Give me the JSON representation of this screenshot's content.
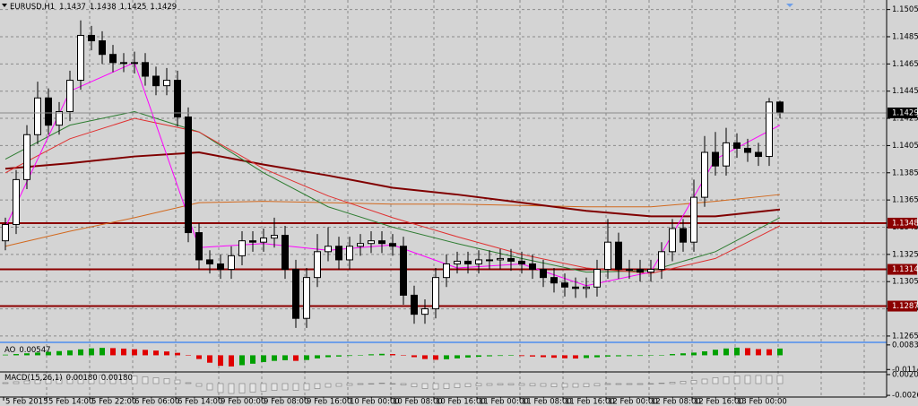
{
  "chart_data": {
    "type": "candlestick",
    "symbol": "EURUSD,H1",
    "ohlc": [
      [
        1.1335,
        1.1352,
        1.1328,
        1.1347
      ],
      [
        1.1347,
        1.1387,
        1.134,
        1.138
      ],
      [
        1.138,
        1.142,
        1.1373,
        1.1413
      ],
      [
        1.1413,
        1.1452,
        1.1406,
        1.144
      ],
      [
        1.144,
        1.1447,
        1.1413,
        1.142
      ],
      [
        1.142,
        1.1437,
        1.1413,
        1.143
      ],
      [
        1.143,
        1.146,
        1.1423,
        1.1453
      ],
      [
        1.1453,
        1.1497,
        1.1446,
        1.1486
      ],
      [
        1.1486,
        1.1493,
        1.1475,
        1.1482
      ],
      [
        1.1482,
        1.1489,
        1.1465,
        1.1472
      ],
      [
        1.1472,
        1.1479,
        1.1459,
        1.1466
      ],
      [
        1.1466,
        1.1473,
        1.1459,
        1.1466
      ],
      [
        1.1466,
        1.1474,
        1.1458,
        1.1466
      ],
      [
        1.1466,
        1.1473,
        1.1449,
        1.1456
      ],
      [
        1.1456,
        1.1463,
        1.1442,
        1.1449
      ],
      [
        1.1449,
        1.1462,
        1.1442,
        1.1453
      ],
      [
        1.1453,
        1.146,
        1.1419,
        1.1426
      ],
      [
        1.1426,
        1.1433,
        1.1334,
        1.1341
      ],
      [
        1.1341,
        1.1348,
        1.1314,
        1.1321
      ],
      [
        1.1321,
        1.1328,
        1.1311,
        1.1318
      ],
      [
        1.1318,
        1.1325,
        1.1307,
        1.1314
      ],
      [
        1.1314,
        1.1331,
        1.1307,
        1.1324
      ],
      [
        1.1324,
        1.1342,
        1.1317,
        1.1335
      ],
      [
        1.1335,
        1.1342,
        1.1327,
        1.1334
      ],
      [
        1.1334,
        1.1344,
        1.1327,
        1.1337
      ],
      [
        1.1337,
        1.1352,
        1.133,
        1.1339
      ],
      [
        1.1339,
        1.1346,
        1.1307,
        1.1314
      ],
      [
        1.1314,
        1.1321,
        1.1271,
        1.1278
      ],
      [
        1.1278,
        1.1315,
        1.1271,
        1.1308
      ],
      [
        1.1308,
        1.134,
        1.1301,
        1.1327
      ],
      [
        1.1327,
        1.1345,
        1.132,
        1.1331
      ],
      [
        1.1331,
        1.1338,
        1.1314,
        1.1321
      ],
      [
        1.1321,
        1.1338,
        1.1314,
        1.1331
      ],
      [
        1.1331,
        1.134,
        1.1324,
        1.1333
      ],
      [
        1.1333,
        1.1342,
        1.1326,
        1.1335
      ],
      [
        1.1335,
        1.1342,
        1.1326,
        1.1333
      ],
      [
        1.1333,
        1.134,
        1.1324,
        1.1331
      ],
      [
        1.1331,
        1.1338,
        1.1288,
        1.1295
      ],
      [
        1.1295,
        1.1302,
        1.1274,
        1.1281
      ],
      [
        1.1281,
        1.1292,
        1.1274,
        1.1285
      ],
      [
        1.1285,
        1.1315,
        1.1278,
        1.1308
      ],
      [
        1.1308,
        1.1325,
        1.1301,
        1.1318
      ],
      [
        1.1318,
        1.1327,
        1.1311,
        1.132
      ],
      [
        1.132,
        1.1327,
        1.1311,
        1.1318
      ],
      [
        1.1318,
        1.1328,
        1.1311,
        1.1321
      ],
      [
        1.1321,
        1.1328,
        1.1314,
        1.1321
      ],
      [
        1.1321,
        1.1329,
        1.1314,
        1.1322
      ],
      [
        1.1322,
        1.1329,
        1.1313,
        1.132
      ],
      [
        1.132,
        1.1327,
        1.1311,
        1.1318
      ],
      [
        1.1318,
        1.1325,
        1.1307,
        1.1314
      ],
      [
        1.1314,
        1.1321,
        1.1301,
        1.1308
      ],
      [
        1.1308,
        1.1315,
        1.1297,
        1.1304
      ],
      [
        1.1304,
        1.1311,
        1.1294,
        1.1301
      ],
      [
        1.1301,
        1.1308,
        1.1293,
        1.13
      ],
      [
        1.13,
        1.1308,
        1.1293,
        1.1301
      ],
      [
        1.1301,
        1.1321,
        1.1294,
        1.1314
      ],
      [
        1.1314,
        1.1351,
        1.1307,
        1.1334
      ],
      [
        1.1334,
        1.1341,
        1.1307,
        1.1314
      ],
      [
        1.1314,
        1.1321,
        1.1307,
        1.1314
      ],
      [
        1.1314,
        1.1321,
        1.1305,
        1.1312
      ],
      [
        1.1312,
        1.1321,
        1.1305,
        1.1314
      ],
      [
        1.1314,
        1.1334,
        1.1307,
        1.1327
      ],
      [
        1.1327,
        1.1351,
        1.132,
        1.1344
      ],
      [
        1.1344,
        1.1351,
        1.1327,
        1.1334
      ],
      [
        1.1334,
        1.138,
        1.1327,
        1.1367
      ],
      [
        1.1367,
        1.1412,
        1.136,
        1.14
      ],
      [
        1.14,
        1.1415,
        1.1383,
        1.139
      ],
      [
        1.139,
        1.1418,
        1.1383,
        1.1407
      ],
      [
        1.1407,
        1.1414,
        1.1396,
        1.1403
      ],
      [
        1.1403,
        1.141,
        1.1393,
        1.14
      ],
      [
        1.14,
        1.1407,
        1.139,
        1.1397
      ],
      [
        1.1397,
        1.144,
        1.139,
        1.1437
      ],
      [
        1.1437,
        1.1438,
        1.1425,
        1.1429
      ]
    ],
    "bull_color": "#ffffff",
    "bear_color": "#000000",
    "ylim": [
      1.1261,
      1.1512
    ],
    "yticks": [
      1.1265,
      1.1285,
      1.1305,
      1.1325,
      1.1345,
      1.1365,
      1.1385,
      1.1405,
      1.1425,
      1.1445,
      1.1465,
      1.1485,
      1.1505
    ],
    "grid": true,
    "levels": [
      1.1348,
      1.1314,
      1.1287
    ],
    "level_color": "#8b0000",
    "ma_index": [
      0,
      6,
      12,
      18,
      24,
      30,
      36,
      42,
      48,
      54,
      60,
      66,
      72
    ],
    "ma_series": [
      {
        "color": "#d2691e",
        "values": [
          1.1331,
          1.1342,
          1.1352,
          1.1363,
          1.1364,
          1.1363,
          1.1362,
          1.1362,
          1.1361,
          1.136,
          1.136,
          1.1364,
          1.1369
        ]
      },
      {
        "color": "#800000",
        "values": [
          1.1388,
          1.1392,
          1.1397,
          1.14,
          1.1391,
          1.1383,
          1.1374,
          1.1369,
          1.1363,
          1.1357,
          1.1353,
          1.1353,
          1.1358
        ]
      },
      {
        "color": "#2e7d32",
        "values": [
          1.1395,
          1.142,
          1.143,
          1.1415,
          1.1385,
          1.136,
          1.1345,
          1.1333,
          1.1322,
          1.1312,
          1.1313,
          1.1327,
          1.1352
        ]
      },
      {
        "color": "#e03030",
        "values": [
          1.1385,
          1.141,
          1.1425,
          1.1415,
          1.1388,
          1.1368,
          1.1352,
          1.1338,
          1.1325,
          1.1315,
          1.1311,
          1.1322,
          1.1346
        ]
      },
      {
        "color": "#ff00ff",
        "values": [
          1.1345,
          1.1445,
          1.1466,
          1.133,
          1.1333,
          1.1328,
          1.1332,
          1.1315,
          1.1318,
          1.1302,
          1.1312,
          1.1395,
          1.142
        ]
      }
    ],
    "time_labels": [
      "5 Feb 2015",
      "5 Feb 14:00",
      "5 Feb 22:00",
      "6 Feb 06:00",
      "6 Feb 14:00",
      "9 Feb 00:00",
      "9 Feb 08:00",
      "9 Feb 16:00",
      "10 Feb 00:00",
      "10 Feb 08:00",
      "10 Feb 16:00",
      "11 Feb 00:00",
      "11 Feb 08:00",
      "11 Feb 16:00",
      "12 Feb 00:00",
      "12 Feb 08:00",
      "12 Feb 16:00",
      "13 Feb 00:00"
    ],
    "ao": {
      "name": "AO",
      "up_color": "#00a000",
      "down_color": "#e00000",
      "ylim": [
        -0.012,
        0.009
      ],
      "yticks": [
        0.00838,
        -0.01147
      ],
      "values": [
        0.0005,
        0.001,
        0.0016,
        0.0022,
        0.0028,
        0.0034,
        0.004,
        0.0048,
        0.0056,
        0.006,
        0.0058,
        0.0054,
        0.0049,
        0.0044,
        0.0038,
        0.0031,
        0.002,
        0.0002,
        -0.003,
        -0.006,
        -0.0085,
        -0.009,
        -0.008,
        -0.0068,
        -0.0055,
        -0.0045,
        -0.004,
        -0.0045,
        -0.0038,
        -0.0025,
        -0.0015,
        -0.001,
        -0.0005,
        0.0002,
        0.0008,
        0.0012,
        0.001,
        0.0002,
        -0.0015,
        -0.003,
        -0.0036,
        -0.0032,
        -0.0025,
        -0.0018,
        -0.0012,
        -0.0008,
        -0.0005,
        -0.0004,
        -0.0006,
        -0.001,
        -0.0015,
        -0.002,
        -0.0024,
        -0.0026,
        -0.0022,
        -0.0016,
        -0.001,
        -0.0008,
        -0.0006,
        -0.0005,
        -0.0003,
        0.0002,
        0.001,
        0.0016,
        0.0022,
        0.0032,
        0.0045,
        0.0055,
        0.0062,
        0.0058,
        0.005,
        0.0049,
        0.00547
      ]
    },
    "macd": {
      "name": "MACD(15,26,1)",
      "header_values": [
        {
          "value": 0.0018,
          "label": "0.00180"
        },
        {
          "value": 0.0018,
          "label": "0.00180"
        }
      ],
      "color": "#e6e6e6",
      "ylim": [
        -0.0028,
        0.0022
      ],
      "yticks": [
        0.00201,
        -0.00262
      ],
      "values": [
        0.0002,
        0.0004,
        0.0006,
        0.0008,
        0.001,
        0.0012,
        0.0014,
        0.0016,
        0.0018,
        0.0019,
        0.0019,
        0.0018,
        0.0017,
        0.0015,
        0.0013,
        0.0011,
        0.0008,
        0.0002,
        -0.0006,
        -0.0014,
        -0.002,
        -0.0022,
        -0.0021,
        -0.0019,
        -0.0017,
        -0.0015,
        -0.0014,
        -0.0015,
        -0.0014,
        -0.0011,
        -0.0008,
        -0.0006,
        -0.0004,
        -0.0002,
        0.0,
        0.0001,
        0.0,
        -0.0003,
        -0.0007,
        -0.0011,
        -0.0012,
        -0.0011,
        -0.0009,
        -0.0007,
        -0.0005,
        -0.0004,
        -0.0003,
        -0.0003,
        -0.0004,
        -0.0005,
        -0.0006,
        -0.0007,
        -0.0008,
        -0.0008,
        -0.0007,
        -0.0005,
        -0.0002,
        -0.0002,
        -0.0002,
        -0.0002,
        -0.0001,
        0.0001,
        0.0003,
        0.0005,
        0.0007,
        0.001,
        0.0013,
        0.0015,
        0.0017,
        0.0018,
        0.0018,
        0.0018,
        0.0018
      ]
    }
  }
}
